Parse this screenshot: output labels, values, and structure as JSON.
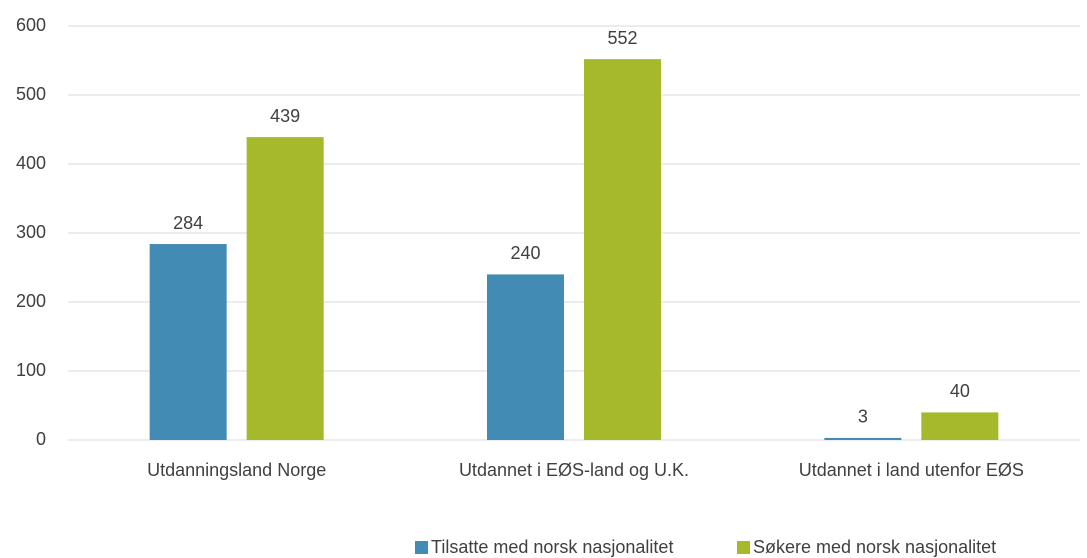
{
  "chart_data": {
    "type": "bar",
    "categories": [
      "Utdanningsland Norge",
      "Utdannet i EØS-land og U.K.",
      "Utdannet i land utenfor EØS"
    ],
    "series": [
      {
        "name": "Tilsatte med norsk nasjonalitet",
        "color": "#428bb5",
        "values": [
          284,
          240,
          3
        ]
      },
      {
        "name": "Søkere med norsk nasjonalitet",
        "color": "#a5b92b",
        "values": [
          439,
          552,
          40
        ]
      }
    ],
    "ylim": [
      0,
      600
    ],
    "yticks": [
      0,
      100,
      200,
      300,
      400,
      500,
      600
    ],
    "grid": true,
    "legend": "bottom"
  }
}
